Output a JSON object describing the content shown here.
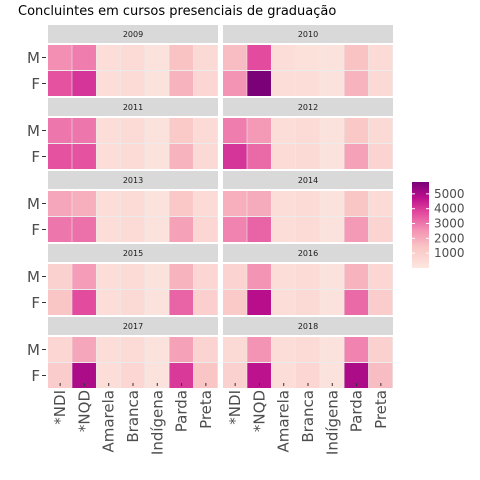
{
  "chart_data": {
    "type": "heatmap",
    "title": "Concluintes em cursos presenciais de graduação",
    "xlabel": "",
    "ylabel": "",
    "x_categories": [
      "*NDI",
      "*NQD",
      "Amarela",
      "Branca",
      "Indígena",
      "Parda",
      "Preta"
    ],
    "y_categories": [
      "M",
      "F"
    ],
    "legend": {
      "breaks": [
        1000,
        2000,
        3000,
        4000,
        5000
      ],
      "labels": [
        "1000",
        "2000",
        "3000",
        "4000",
        "5000"
      ],
      "range": [
        0,
        5800
      ],
      "low_color": "#FDE7E0",
      "high_color": "#7A0177",
      "placement": "right"
    },
    "grid": true,
    "panels": [
      {
        "label": "2009",
        "values": {
          "M": [
            2600,
            2900,
            400,
            500,
            200,
            1500,
            600
          ],
          "F": [
            3600,
            4100,
            400,
            500,
            200,
            1800,
            700
          ]
        }
      },
      {
        "label": "2010",
        "values": {
          "M": [
            1600,
            3700,
            400,
            300,
            200,
            1500,
            500
          ],
          "F": [
            2500,
            5800,
            400,
            400,
            200,
            1800,
            600
          ]
        }
      },
      {
        "label": "2011",
        "values": {
          "M": [
            3000,
            3000,
            400,
            500,
            200,
            1200,
            500
          ],
          "F": [
            3600,
            3600,
            400,
            500,
            200,
            1800,
            600
          ]
        }
      },
      {
        "label": "2012",
        "values": {
          "M": [
            2900,
            2400,
            400,
            500,
            200,
            1300,
            600
          ],
          "F": [
            4100,
            3200,
            500,
            600,
            200,
            2200,
            800
          ]
        }
      },
      {
        "label": "2013",
        "values": {
          "M": [
            2100,
            1900,
            400,
            500,
            200,
            1300,
            500
          ],
          "F": [
            3000,
            3100,
            400,
            500,
            200,
            2200,
            700
          ]
        }
      },
      {
        "label": "2014",
        "values": {
          "M": [
            1900,
            2000,
            400,
            500,
            200,
            1400,
            500
          ],
          "F": [
            2800,
            3300,
            400,
            500,
            200,
            2400,
            800
          ]
        }
      },
      {
        "label": "2015",
        "values": {
          "M": [
            900,
            2300,
            400,
            500,
            200,
            1800,
            700
          ],
          "F": [
            1400,
            3700,
            400,
            600,
            200,
            3300,
            1000
          ]
        }
      },
      {
        "label": "2016",
        "values": {
          "M": [
            800,
            2500,
            400,
            500,
            200,
            1800,
            700
          ],
          "F": [
            1200,
            4800,
            400,
            600,
            200,
            3200,
            1100
          ]
        }
      },
      {
        "label": "2017",
        "values": {
          "M": [
            700,
            2100,
            400,
            500,
            200,
            2200,
            800
          ],
          "F": [
            1100,
            5000,
            400,
            700,
            200,
            4000,
            1400
          ]
        }
      },
      {
        "label": "2018",
        "values": {
          "M": [
            600,
            2500,
            400,
            500,
            200,
            2800,
            900
          ],
          "F": [
            900,
            4700,
            400,
            700,
            200,
            5000,
            1600
          ]
        }
      }
    ]
  }
}
